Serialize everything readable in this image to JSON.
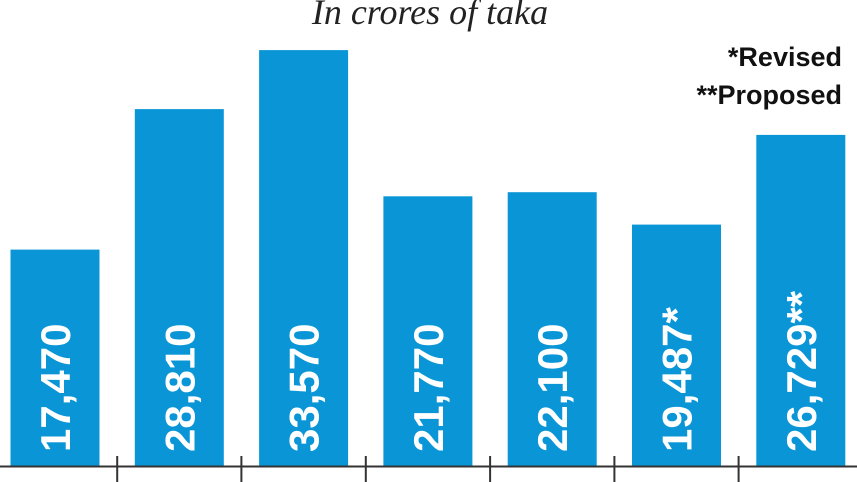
{
  "chart_data": {
    "type": "bar",
    "subtitle": "In crores of taka",
    "notes": [
      "*Revised",
      "**Proposed"
    ],
    "values": [
      17470,
      28810,
      33570,
      21770,
      22100,
      19487,
      26729
    ],
    "value_labels": [
      "17,470",
      "28,810",
      "33,570",
      "21,770",
      "22,100",
      "19,487*",
      "26,729**"
    ],
    "ylim": [
      0,
      36000
    ],
    "bar_color": "#0a96d6",
    "axis_color": "#333333"
  }
}
